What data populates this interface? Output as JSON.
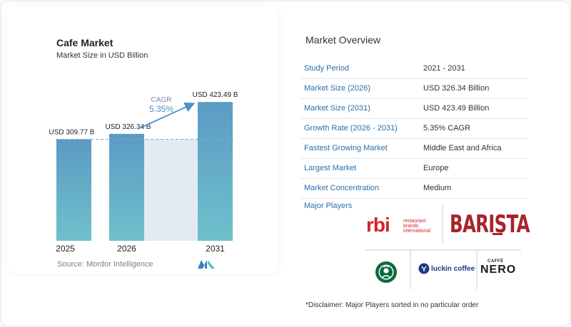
{
  "chart_data": {
    "type": "bar",
    "title": "Cafe Market",
    "subtitle": "Market Size in USD Billion",
    "categories": [
      "2025",
      "2026",
      "2031"
    ],
    "values": [
      309.77,
      326.34,
      423.49
    ],
    "value_labels": [
      "USD 309.77 B",
      "USD 326.34 B",
      "USD 423.49 B"
    ],
    "ylim": [
      0,
      450
    ],
    "reference_line_value": 309.77,
    "cagr_label": "CAGR",
    "cagr_value": "5.35%",
    "grid": false,
    "colors": {
      "bar_top": "#5b9bc4",
      "bar_bottom": "#6fc0cc",
      "band": "#e3eaf3",
      "accent": "#4a90c9",
      "arrow": "#4a90c9"
    }
  },
  "source_text": "Source: Mordor Intelligence",
  "overview": {
    "title": "Market Overview",
    "rows": [
      {
        "label": "Study Period",
        "value": "2021 - 2031"
      },
      {
        "label": "Market Size (2026)",
        "value": "USD 326.34 Billion"
      },
      {
        "label": "Market Size (2031)",
        "value": "USD 423.49 Billion"
      },
      {
        "label": "Growth Rate (2026 - 2031)",
        "value": "5.35% CAGR"
      },
      {
        "label": "Fastest Growing Market",
        "value": "Middle East and Africa"
      },
      {
        "label": "Largest Market",
        "value": "Europe"
      },
      {
        "label": "Market Concentration",
        "value": "Medium"
      }
    ]
  },
  "players": {
    "title": "Major Players",
    "rbi_logo": "rbi",
    "rbi_tagline": [
      "restaurant",
      "brands",
      "international"
    ],
    "barista_logo": "BARISTA",
    "starbucks_icon": "starbucks-siren-icon",
    "luckin_logo": "luckin coffee",
    "nero_small": "CAFFÈ",
    "nero_logo": "NERO"
  },
  "disclaimer": "*Disclaimer: Major Players sorted in no particular order"
}
